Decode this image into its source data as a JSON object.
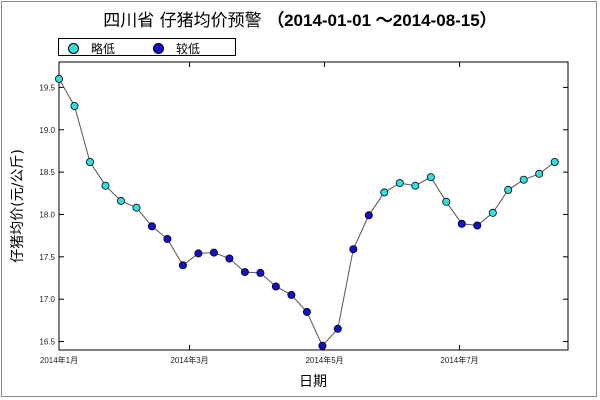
{
  "chart_data": {
    "type": "scatter",
    "title": "四川省 仔猪均价预警",
    "subtitle": "（2014-01-01 ～2014-08-15）",
    "xlabel": "日期",
    "ylabel": "仔猪均价(元/公斤)",
    "ylim": [
      16.4,
      19.8
    ],
    "y_ticks": [
      16.5,
      17.0,
      17.5,
      18.0,
      18.5,
      19.0,
      19.5
    ],
    "y_tick_labels": [
      "16.5",
      "17.0",
      "17.5",
      "18.0",
      "18.5",
      "19.0",
      "19.5"
    ],
    "xlim": [
      "2014-01-01",
      "2014-08-19"
    ],
    "x_ticks": [
      {
        "date": "2014-01-01",
        "label": "2014年1月"
      },
      {
        "date": "2014-03-01",
        "label": "2014年3月"
      },
      {
        "date": "2014-05-01",
        "label": "2014年5月"
      },
      {
        "date": "2014-07-01",
        "label": "2014年7月"
      }
    ],
    "grid": false,
    "legend_position": "top-left",
    "series": [
      {
        "name": "略低",
        "color": "#33dddd"
      },
      {
        "name": "较低",
        "color": "#1111cc"
      }
    ],
    "points": [
      {
        "date": "2014-01-01",
        "value": 19.6,
        "level": "略低"
      },
      {
        "date": "2014-01-08",
        "value": 19.28,
        "level": "略低"
      },
      {
        "date": "2014-01-15",
        "value": 18.62,
        "level": "略低"
      },
      {
        "date": "2014-01-22",
        "value": 18.34,
        "level": "略低"
      },
      {
        "date": "2014-01-29",
        "value": 18.16,
        "level": "略低"
      },
      {
        "date": "2014-02-05",
        "value": 18.08,
        "level": "略低"
      },
      {
        "date": "2014-02-12",
        "value": 17.86,
        "level": "较低"
      },
      {
        "date": "2014-02-19",
        "value": 17.71,
        "level": "较低"
      },
      {
        "date": "2014-02-26",
        "value": 17.4,
        "level": "较低"
      },
      {
        "date": "2014-03-05",
        "value": 17.54,
        "level": "较低"
      },
      {
        "date": "2014-03-12",
        "value": 17.55,
        "level": "较低"
      },
      {
        "date": "2014-03-19",
        "value": 17.48,
        "level": "较低"
      },
      {
        "date": "2014-03-26",
        "value": 17.32,
        "level": "较低"
      },
      {
        "date": "2014-04-02",
        "value": 17.31,
        "level": "较低"
      },
      {
        "date": "2014-04-09",
        "value": 17.15,
        "level": "较低"
      },
      {
        "date": "2014-04-16",
        "value": 17.05,
        "level": "较低"
      },
      {
        "date": "2014-04-23",
        "value": 16.85,
        "level": "较低"
      },
      {
        "date": "2014-04-30",
        "value": 16.45,
        "level": "较低"
      },
      {
        "date": "2014-05-07",
        "value": 16.65,
        "level": "较低"
      },
      {
        "date": "2014-05-14",
        "value": 17.59,
        "level": "较低"
      },
      {
        "date": "2014-05-21",
        "value": 17.99,
        "level": "较低"
      },
      {
        "date": "2014-05-28",
        "value": 18.26,
        "level": "略低"
      },
      {
        "date": "2014-06-04",
        "value": 18.37,
        "level": "略低"
      },
      {
        "date": "2014-06-11",
        "value": 18.34,
        "level": "略低"
      },
      {
        "date": "2014-06-18",
        "value": 18.44,
        "level": "略低"
      },
      {
        "date": "2014-06-25",
        "value": 18.15,
        "level": "略低"
      },
      {
        "date": "2014-07-02",
        "value": 17.89,
        "level": "较低"
      },
      {
        "date": "2014-07-09",
        "value": 17.87,
        "level": "较低"
      },
      {
        "date": "2014-07-16",
        "value": 18.02,
        "level": "略低"
      },
      {
        "date": "2014-07-23",
        "value": 18.29,
        "level": "略低"
      },
      {
        "date": "2014-07-30",
        "value": 18.41,
        "level": "略低"
      },
      {
        "date": "2014-08-06",
        "value": 18.48,
        "level": "略低"
      },
      {
        "date": "2014-08-13",
        "value": 18.62,
        "level": "略低"
      }
    ]
  }
}
